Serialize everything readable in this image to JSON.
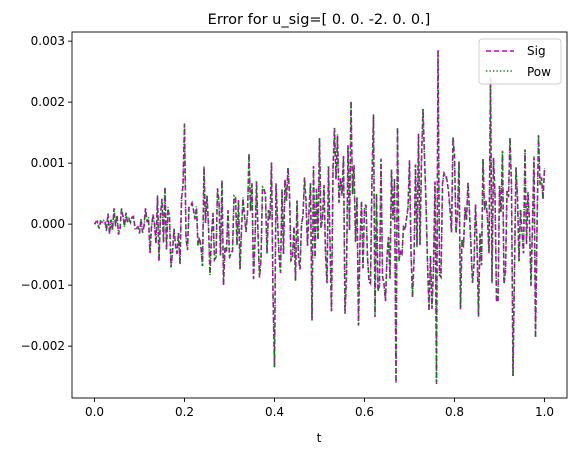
{
  "chart_data": {
    "type": "line",
    "title": "Error for u_sig=[ 0.  0. -2.  0.  0.]",
    "xlabel": "t",
    "ylabel": "",
    "xlim": [
      -0.05,
      1.05
    ],
    "ylim": [
      -0.00285,
      0.00315
    ],
    "xticks": [
      0.0,
      0.2,
      0.4,
      0.6,
      0.8,
      1.0
    ],
    "xtick_labels": [
      "0.0",
      "0.2",
      "0.4",
      "0.6",
      "0.8",
      "1.0"
    ],
    "yticks": [
      -0.002,
      -0.001,
      0.0,
      0.001,
      0.002,
      0.003
    ],
    "ytick_labels": [
      "−0.002",
      "−0.001",
      "0.000",
      "0.001",
      "0.002",
      "0.003"
    ],
    "grid": false,
    "legend_position": "top-right",
    "x_range": [
      0.0,
      1.0
    ],
    "n_samples": 301,
    "envelope": {
      "t": [
        0.0,
        0.05,
        0.1,
        0.2,
        0.3,
        0.4,
        0.5,
        0.6,
        0.7,
        0.8,
        0.9,
        1.0
      ],
      "amplitude": [
        5e-05,
        0.0003,
        0.0004,
        0.0009,
        0.0011,
        0.0012,
        0.0015,
        0.0016,
        0.0018,
        0.0017,
        0.0016,
        0.0012
      ]
    },
    "peaks": [
      {
        "t": 0.2,
        "y": 0.00165
      },
      {
        "t": 0.4,
        "y": -0.00235
      },
      {
        "t": 0.57,
        "y": 0.002
      },
      {
        "t": 0.62,
        "y": 0.0018
      },
      {
        "t": 0.67,
        "y": -0.0026
      },
      {
        "t": 0.73,
        "y": 0.0019
      },
      {
        "t": 0.765,
        "y": 0.00285
      },
      {
        "t": 0.76,
        "y": -0.00262
      },
      {
        "t": 0.88,
        "y": 0.0024
      },
      {
        "t": 0.93,
        "y": -0.0025
      },
      {
        "t": 0.98,
        "y": -0.00185
      }
    ],
    "series": [
      {
        "name": "Sig",
        "color": "#cc00cc",
        "style": "dashed"
      },
      {
        "name": "Pow",
        "color": "#008000",
        "style": "dotted"
      }
    ]
  }
}
